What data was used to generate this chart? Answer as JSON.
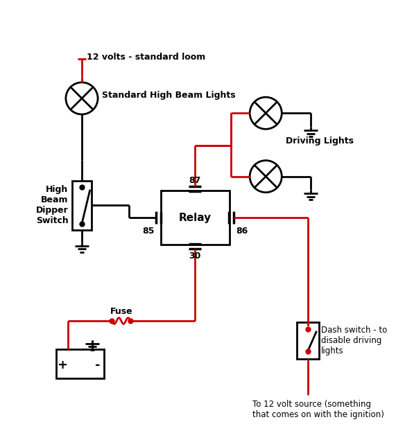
{
  "bg_color": "#ffffff",
  "black": "#000000",
  "red": "#cc0000",
  "text_12v": "12 volts - standard loom",
  "text_highbeam": "Standard High Beam Lights",
  "text_driving": "Driving Lights",
  "text_switch": "High\nBeam\nDipper\nSwitch",
  "text_relay": "Relay",
  "text_fuse": "Fuse",
  "text_dash": "Dash switch - to\ndisable driving\nlights",
  "text_12vsource": "To 12 volt source (something\nthat comes on with the ignition)",
  "text_87": "87",
  "text_86": "86",
  "text_85": "85",
  "text_30": "30"
}
